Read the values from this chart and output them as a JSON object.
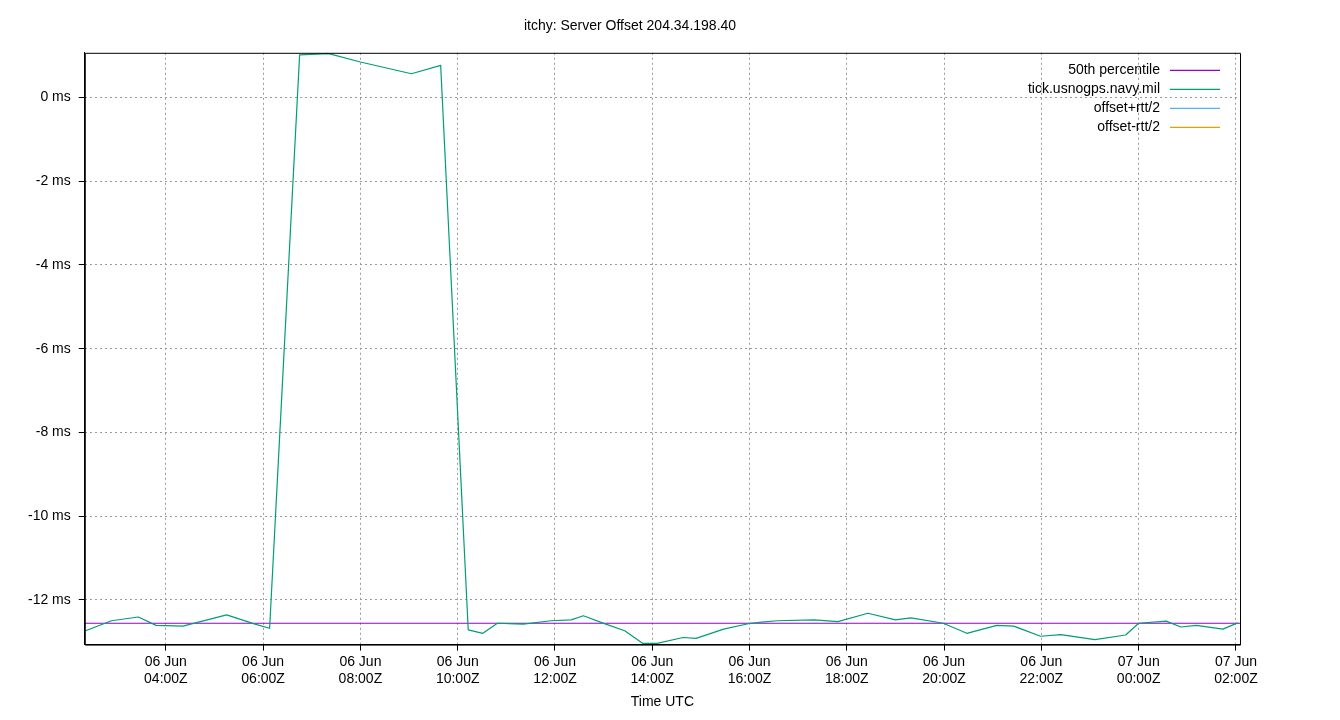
{
  "chart_data": {
    "type": "line",
    "title": "itchy: Server Offset 204.34.198.40",
    "xlabel": "Time UTC",
    "x": [
      "--06-06T02:21",
      "--06-06T02:53",
      "--06-06T03:26",
      "--06-06T03:48",
      "--06-06T04:21",
      "--06-06T05:15",
      "--06-06T05:50",
      "--06-06T06:08",
      "--06-06T06:45",
      "--06-06T07:21",
      "--06-06T08:00",
      "--06-06T09:03",
      "--06-06T09:39",
      "--06-06T10:13",
      "--06-06T10:31",
      "--06-06T10:49",
      "--06-06T11:21",
      "--06-06T11:55",
      "--06-06T12:20",
      "--06-06T12:35",
      "--06-06T13:01",
      "--06-06T13:26",
      "--06-06T13:48",
      "--06-06T14:06",
      "--06-06T14:38",
      "--06-06T14:54",
      "--06-06T15:28",
      "--06-06T16:01",
      "--06-06T16:34",
      "--06-06T17:20",
      "--06-06T17:49",
      "--06-06T18:26",
      "--06-06T19:00",
      "--06-06T19:19",
      "--06-06T19:59",
      "--06-06T20:28",
      "--06-06T21:05",
      "--06-06T21:26",
      "--06-06T21:59",
      "--06-06T22:24",
      "--06-06T23:06",
      "--06-06T23:44",
      "--06-07T00:00",
      "--06-07T00:34",
      "--06-07T00:52",
      "--06-07T01:11",
      "--06-07T01:44",
      "--06-07T02:02"
    ],
    "series": [
      {
        "name": "50th percentile",
        "color": "#9400d3",
        "x": [
          "--06-06T02:20",
          "--06-07T02:05"
        ],
        "values": [
          -12.56,
          -12.56
        ]
      },
      {
        "name": "tick.usnogps.navy.mil",
        "color": "#009e73",
        "values": [
          -12.74,
          -12.5,
          -12.41,
          -12.61,
          -12.63,
          -12.36,
          -12.58,
          -12.68,
          1.02,
          1.05,
          0.85,
          0.57,
          0.77,
          -12.72,
          -12.8,
          -12.56,
          -12.58,
          -12.5,
          -12.48,
          -12.38,
          -12.57,
          -12.74,
          -13.04,
          -13.04,
          -12.9,
          -12.92,
          -12.7,
          -12.56,
          -12.5,
          -12.48,
          -12.52,
          -12.32,
          -12.48,
          -12.43,
          -12.56,
          -12.8,
          -12.61,
          -12.63,
          -12.87,
          -12.83,
          -12.95,
          -12.84,
          -12.56,
          -12.51,
          -12.65,
          -12.61,
          -12.7,
          -12.55
        ]
      },
      {
        "name": "offset+rtt/2",
        "color": "#56b4e9",
        "values": [
          null,
          null,
          null,
          null,
          null,
          null,
          null,
          null,
          null,
          null,
          null,
          null,
          null,
          null,
          null,
          null,
          null,
          null,
          null,
          null,
          null,
          null,
          null,
          null,
          null,
          null,
          null,
          null,
          null,
          null,
          null,
          null,
          null,
          null,
          null,
          null,
          null,
          null,
          null,
          null,
          null,
          null,
          null,
          null,
          null,
          null,
          null,
          null
        ]
      },
      {
        "name": "offset-rtt/2",
        "color": "#e69f00",
        "values": [
          null,
          null,
          null,
          null,
          null,
          null,
          null,
          null,
          null,
          null,
          null,
          null,
          null,
          null,
          null,
          null,
          null,
          null,
          null,
          null,
          null,
          null,
          null,
          null,
          null,
          null,
          null,
          null,
          null,
          null,
          null,
          null,
          null,
          null,
          null,
          null,
          null,
          null,
          null,
          null,
          null,
          null,
          null,
          null,
          null,
          null,
          null,
          null
        ]
      }
    ],
    "xlim": [
      "--06-06T02:20",
      "--06-07T02:05"
    ],
    "xticks": [
      {
        "value": "--06-06T04:00",
        "label": "06 Jun\n04:00Z"
      },
      {
        "value": "--06-06T06:00",
        "label": "06 Jun\n06:00Z"
      },
      {
        "value": "--06-06T08:00",
        "label": "06 Jun\n08:00Z"
      },
      {
        "value": "--06-06T10:00",
        "label": "06 Jun\n10:00Z"
      },
      {
        "value": "--06-06T12:00",
        "label": "06 Jun\n12:00Z"
      },
      {
        "value": "--06-06T14:00",
        "label": "06 Jun\n14:00Z"
      },
      {
        "value": "--06-06T16:00",
        "label": "06 Jun\n16:00Z"
      },
      {
        "value": "--06-06T18:00",
        "label": "06 Jun\n18:00Z"
      },
      {
        "value": "--06-06T20:00",
        "label": "06 Jun\n20:00Z"
      },
      {
        "value": "--06-06T22:00",
        "label": "06 Jun\n22:00Z"
      },
      {
        "value": "--06-07T00:00",
        "label": "07 Jun\n00:00Z"
      },
      {
        "value": "--06-07T02:00",
        "label": "07 Jun\n02:00Z"
      }
    ],
    "ylim": [
      -13.07,
      1.07
    ],
    "yticks": [
      {
        "value": 0,
        "label": "0 ms"
      },
      {
        "value": -2,
        "label": "-2 ms"
      },
      {
        "value": -4,
        "label": "-4 ms"
      },
      {
        "value": -6,
        "label": "-6 ms"
      },
      {
        "value": -8,
        "label": "-8 ms"
      },
      {
        "value": -10,
        "label": "-10 ms"
      },
      {
        "value": -12,
        "label": "-12 ms"
      }
    ],
    "grid": true,
    "legend": "top right",
    "marker": "none",
    "line_style": "solid"
  }
}
